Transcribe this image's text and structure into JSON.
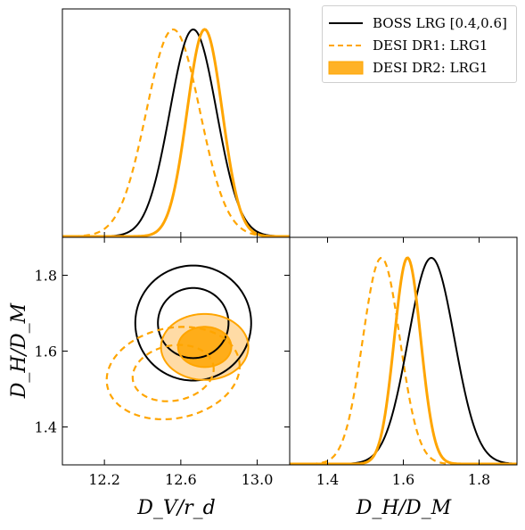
{
  "chart_data": {
    "type": "corner",
    "colors": {
      "boss": "#000000",
      "desi": "#ffa500",
      "fill_dark": "#ffa500",
      "fill_light": "#ffd9a0"
    },
    "legend": {
      "placement": "top-right",
      "entries": [
        "BOSS LRG [0.4,0.6]",
        "DESI DR1: LRG1",
        "DESI DR2: LRG1"
      ],
      "styles": [
        "solid-black",
        "dashed-orange",
        "filled-orange"
      ]
    },
    "axes": {
      "x": {
        "label": "D_V/r_d",
        "lim": [
          11.98,
          13.17
        ],
        "ticks": [
          12.2,
          12.6,
          13.0
        ],
        "ticklabels": [
          "12.2",
          "12.6",
          "13.0"
        ]
      },
      "y": {
        "label": "D_H/D_M",
        "lim": [
          1.3,
          1.9
        ],
        "ticks": [
          1.4,
          1.6,
          1.8
        ],
        "ticklabels": [
          "1.4",
          "1.6",
          "1.8"
        ]
      }
    },
    "xlabel": "D_V/r_d",
    "ylabel": "D_H/D_M",
    "x2label": "D_H/D_M",
    "series": [
      {
        "name": "BOSS LRG [0.4,0.6]",
        "dv_mean": 12.665,
        "dv_sigma": 0.122,
        "dhdm_mean": 1.674,
        "dhdm_sigma": 0.061,
        "corr": 0.0
      },
      {
        "name": "DESI DR1: LRG1",
        "dv_mean": 12.56,
        "dv_sigma": 0.14,
        "dhdm_mean": 1.542,
        "dhdm_sigma": 0.049,
        "corr": 0.15
      },
      {
        "name": "DESI DR2: LRG1",
        "dv_mean": 12.725,
        "dv_sigma": 0.092,
        "dhdm_mean": 1.611,
        "dhdm_sigma": 0.035,
        "corr": 0.0
      }
    ]
  }
}
